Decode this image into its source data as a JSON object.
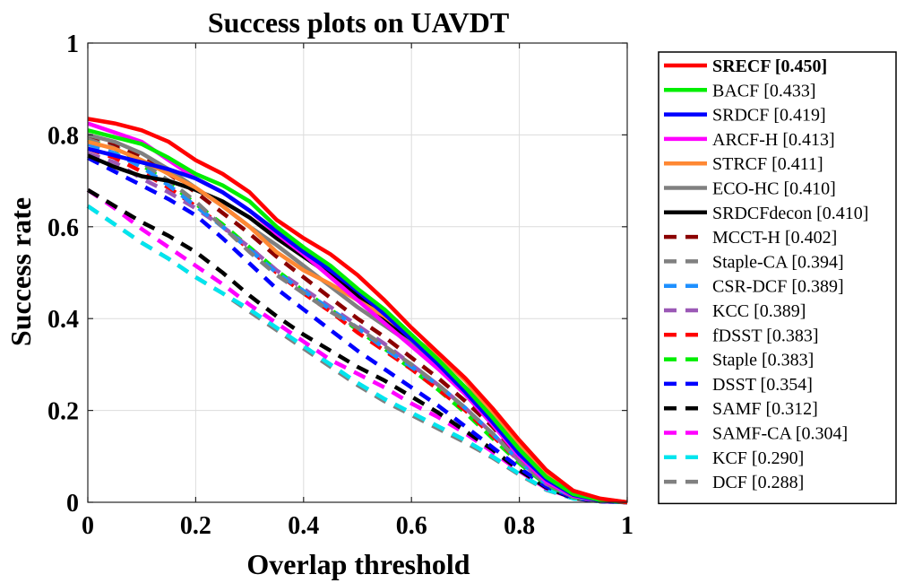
{
  "chart_data": {
    "type": "line",
    "title": "Success plots on UAVDT",
    "xlabel": "Overlap threshold",
    "ylabel": "Success rate",
    "xlim": [
      0,
      1
    ],
    "ylim": [
      0,
      1
    ],
    "xticks": [
      "0",
      "0.2",
      "0.4",
      "0.6",
      "0.8",
      "1"
    ],
    "yticks": [
      "0",
      "0.2",
      "0.4",
      "0.6",
      "0.8",
      "1"
    ],
    "grid": true,
    "legend_position": "outside-right",
    "x": [
      0,
      0.05,
      0.1,
      0.15,
      0.2,
      0.25,
      0.3,
      0.35,
      0.4,
      0.45,
      0.5,
      0.55,
      0.6,
      0.65,
      0.7,
      0.75,
      0.8,
      0.85,
      0.9,
      0.95,
      1.0
    ],
    "series": [
      {
        "name": "SRECF [0.450]",
        "color": "#ff0000",
        "dash": "solid",
        "bold": true,
        "values": [
          0.835,
          0.825,
          0.81,
          0.785,
          0.745,
          0.715,
          0.675,
          0.615,
          0.575,
          0.54,
          0.495,
          0.44,
          0.38,
          0.325,
          0.27,
          0.205,
          0.135,
          0.07,
          0.025,
          0.008,
          0.0
        ]
      },
      {
        "name": "BACF [0.433]",
        "color": "#00ee00",
        "dash": "solid",
        "values": [
          0.81,
          0.795,
          0.78,
          0.75,
          0.715,
          0.69,
          0.655,
          0.6,
          0.555,
          0.515,
          0.465,
          0.42,
          0.365,
          0.31,
          0.25,
          0.185,
          0.115,
          0.055,
          0.018,
          0.005,
          0.0
        ]
      },
      {
        "name": "SRDCF [0.419]",
        "color": "#0000ff",
        "dash": "solid",
        "values": [
          0.77,
          0.755,
          0.74,
          0.725,
          0.705,
          0.675,
          0.635,
          0.59,
          0.545,
          0.505,
          0.46,
          0.41,
          0.355,
          0.3,
          0.24,
          0.175,
          0.105,
          0.05,
          0.016,
          0.004,
          0.0
        ]
      },
      {
        "name": "ARCF-H [0.413]",
        "color": "#ff00ff",
        "dash": "solid",
        "values": [
          0.825,
          0.805,
          0.785,
          0.745,
          0.705,
          0.675,
          0.635,
          0.585,
          0.54,
          0.49,
          0.44,
          0.39,
          0.34,
          0.29,
          0.235,
          0.17,
          0.1,
          0.045,
          0.014,
          0.004,
          0.0
        ]
      },
      {
        "name": "STRCF [0.411]",
        "color": "#ff8833",
        "dash": "solid",
        "values": [
          0.785,
          0.77,
          0.745,
          0.715,
          0.685,
          0.645,
          0.6,
          0.545,
          0.505,
          0.475,
          0.44,
          0.405,
          0.36,
          0.32,
          0.265,
          0.195,
          0.125,
          0.06,
          0.02,
          0.005,
          0.0
        ]
      },
      {
        "name": "ECO-HC [0.410]",
        "color": "#808080",
        "dash": "solid",
        "values": [
          0.8,
          0.785,
          0.76,
          0.725,
          0.685,
          0.645,
          0.6,
          0.56,
          0.515,
          0.47,
          0.425,
          0.385,
          0.345,
          0.3,
          0.25,
          0.195,
          0.135,
          0.07,
          0.025,
          0.007,
          0.0
        ]
      },
      {
        "name": "SRDCFdecon [0.410]",
        "color": "#000000",
        "dash": "solid",
        "values": [
          0.755,
          0.73,
          0.71,
          0.7,
          0.68,
          0.655,
          0.62,
          0.575,
          0.535,
          0.495,
          0.45,
          0.4,
          0.35,
          0.295,
          0.235,
          0.17,
          0.105,
          0.048,
          0.015,
          0.004,
          0.0
        ]
      },
      {
        "name": "MCCT-H [0.402]",
        "color": "#8b0000",
        "dash": "dashed",
        "values": [
          0.8,
          0.78,
          0.75,
          0.715,
          0.675,
          0.63,
          0.585,
          0.535,
          0.49,
          0.445,
          0.4,
          0.36,
          0.315,
          0.27,
          0.22,
          0.165,
          0.1,
          0.045,
          0.014,
          0.004,
          0.0
        ]
      },
      {
        "name": "Staple-CA [0.394]",
        "color": "#808080",
        "dash": "dashed",
        "values": [
          0.795,
          0.775,
          0.74,
          0.7,
          0.655,
          0.6,
          0.545,
          0.495,
          0.455,
          0.415,
          0.38,
          0.34,
          0.3,
          0.255,
          0.205,
          0.15,
          0.09,
          0.04,
          0.012,
          0.003,
          0.0
        ]
      },
      {
        "name": "CSR-DCF [0.389]",
        "color": "#1e90ff",
        "dash": "dashed",
        "values": [
          0.78,
          0.76,
          0.73,
          0.69,
          0.645,
          0.6,
          0.55,
          0.5,
          0.46,
          0.42,
          0.38,
          0.335,
          0.295,
          0.255,
          0.205,
          0.15,
          0.09,
          0.04,
          0.012,
          0.003,
          0.0
        ]
      },
      {
        "name": "KCC [0.389]",
        "color": "#9b59b6",
        "dash": "dashed",
        "values": [
          0.76,
          0.74,
          0.705,
          0.675,
          0.64,
          0.6,
          0.555,
          0.505,
          0.465,
          0.425,
          0.385,
          0.345,
          0.3,
          0.255,
          0.205,
          0.15,
          0.09,
          0.04,
          0.012,
          0.003,
          0.0
        ]
      },
      {
        "name": "fDSST [0.383]",
        "color": "#ff0000",
        "dash": "dashed",
        "values": [
          0.77,
          0.75,
          0.72,
          0.685,
          0.645,
          0.6,
          0.55,
          0.5,
          0.455,
          0.415,
          0.37,
          0.33,
          0.29,
          0.245,
          0.2,
          0.145,
          0.09,
          0.04,
          0.012,
          0.003,
          0.0
        ]
      },
      {
        "name": "Staple [0.383]",
        "color": "#00ee00",
        "dash": "dashed",
        "values": [
          0.79,
          0.77,
          0.735,
          0.695,
          0.65,
          0.605,
          0.555,
          0.505,
          0.46,
          0.42,
          0.375,
          0.335,
          0.29,
          0.245,
          0.195,
          0.14,
          0.085,
          0.038,
          0.011,
          0.003,
          0.0
        ]
      },
      {
        "name": "DSST [0.354]",
        "color": "#0000ff",
        "dash": "dashed",
        "values": [
          0.75,
          0.72,
          0.69,
          0.66,
          0.625,
          0.575,
          0.52,
          0.465,
          0.42,
          0.375,
          0.33,
          0.29,
          0.25,
          0.21,
          0.165,
          0.12,
          0.075,
          0.034,
          0.01,
          0.002,
          0.0
        ]
      },
      {
        "name": "SAMF [0.312]",
        "color": "#000000",
        "dash": "dashed",
        "values": [
          0.68,
          0.645,
          0.61,
          0.58,
          0.545,
          0.5,
          0.45,
          0.405,
          0.365,
          0.33,
          0.295,
          0.265,
          0.23,
          0.195,
          0.155,
          0.115,
          0.07,
          0.032,
          0.009,
          0.002,
          0.0
        ]
      },
      {
        "name": "SAMF-CA [0.304]",
        "color": "#ff00ff",
        "dash": "dashed",
        "values": [
          0.68,
          0.64,
          0.595,
          0.555,
          0.515,
          0.475,
          0.43,
          0.39,
          0.35,
          0.31,
          0.28,
          0.25,
          0.215,
          0.185,
          0.15,
          0.11,
          0.068,
          0.03,
          0.009,
          0.002,
          0.0
        ]
      },
      {
        "name": "KCF [0.290]",
        "color": "#00e5ee",
        "dash": "dashed",
        "values": [
          0.645,
          0.605,
          0.565,
          0.53,
          0.49,
          0.455,
          0.42,
          0.38,
          0.34,
          0.3,
          0.26,
          0.225,
          0.195,
          0.165,
          0.135,
          0.1,
          0.062,
          0.028,
          0.008,
          0.002,
          0.0
        ]
      },
      {
        "name": "DCF [0.288]",
        "color": "#808080",
        "dash": "dashed",
        "values": [
          0.645,
          0.605,
          0.565,
          0.53,
          0.49,
          0.455,
          0.415,
          0.375,
          0.335,
          0.295,
          0.255,
          0.22,
          0.19,
          0.16,
          0.13,
          0.097,
          0.06,
          0.027,
          0.008,
          0.002,
          0.0
        ]
      }
    ]
  }
}
